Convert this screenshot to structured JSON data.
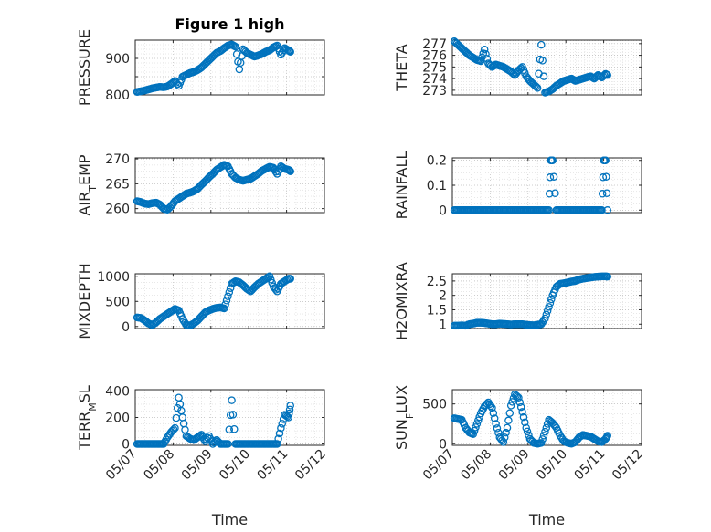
{
  "chart_data": [
    {
      "type": "scatter",
      "title": "Figure 1 high",
      "ylabel": "PRESSURE",
      "xlabel": "",
      "ylim": [
        800,
        950
      ],
      "yticks": [
        800,
        850,
        900
      ],
      "ytick_labels": [
        "800",
        "",
        "900"
      ],
      "x_range": [
        "05/07",
        "05/12"
      ],
      "grid": true,
      "marker_color": "#0072BD",
      "series": [
        {
          "x": [
            0.05,
            0.15,
            0.25,
            0.35,
            0.45,
            0.55,
            0.65,
            0.75,
            0.85,
            0.95,
            1.05,
            1.15,
            1.25,
            1.35,
            1.45,
            1.55,
            1.65,
            1.75,
            1.85,
            1.95,
            2.05,
            2.15,
            2.25,
            2.35,
            2.45,
            2.55,
            2.65,
            2.75,
            2.85,
            2.95,
            3.05,
            3.15,
            3.25,
            3.35,
            3.45,
            3.55,
            3.65,
            3.75,
            3.85,
            3.95,
            4.05,
            4.1
          ],
          "y": [
            808,
            810,
            812,
            815,
            818,
            820,
            822,
            821,
            823,
            830,
            838,
            825,
            850,
            855,
            860,
            863,
            868,
            875,
            885,
            895,
            905,
            915,
            920,
            928,
            935,
            938,
            932,
            870,
            925,
            915,
            910,
            905,
            908,
            912,
            918,
            922,
            930,
            935,
            910,
            928,
            922,
            918
          ]
        }
      ]
    },
    {
      "type": "scatter",
      "title": "",
      "ylabel": "THETA",
      "xlabel": "",
      "ylim": [
        272.6,
        277.3
      ],
      "yticks": [
        273,
        274,
        275,
        276,
        277
      ],
      "ytick_labels": [
        "273",
        "274",
        "275",
        "276",
        "277"
      ],
      "x_range": [
        "05/07",
        "05/12"
      ],
      "grid": true,
      "marker_color": "#0072BD",
      "series": [
        {
          "x": [
            0.05,
            0.15,
            0.25,
            0.35,
            0.45,
            0.55,
            0.65,
            0.75,
            0.85,
            0.95,
            1.05,
            1.15,
            1.25,
            1.35,
            1.45,
            1.55,
            1.65,
            1.75,
            1.85,
            1.95,
            2.05,
            2.15,
            2.25,
            2.35,
            2.45,
            2.55,
            2.65,
            2.75,
            2.85,
            2.95,
            3.05,
            3.15,
            3.25,
            3.35,
            3.45,
            3.55,
            3.65,
            3.75,
            3.85,
            3.95,
            4.05,
            4.1
          ],
          "y": [
            277.2,
            276.9,
            276.6,
            276.3,
            276.0,
            275.8,
            275.6,
            275.5,
            276.5,
            275.3,
            275.0,
            275.2,
            275.1,
            275.0,
            274.8,
            274.6,
            274.3,
            274.7,
            275.0,
            274.2,
            273.8,
            273.5,
            273.2,
            276.9,
            272.8,
            272.9,
            273.1,
            273.4,
            273.6,
            273.8,
            273.9,
            274.0,
            273.8,
            273.9,
            274.0,
            274.1,
            274.2,
            274.0,
            274.3,
            274.1,
            274.4,
            274.3
          ]
        }
      ]
    },
    {
      "type": "scatter",
      "title": "",
      "ylabel": "AIR_TEMP",
      "ylabel_parts": [
        "AIR",
        "T",
        "EMP"
      ],
      "xlabel": "",
      "ylim": [
        259.2,
        270.2
      ],
      "yticks": [
        260,
        265,
        270
      ],
      "ytick_labels": [
        "260",
        "265",
        "270"
      ],
      "x_range": [
        "05/07",
        "05/12"
      ],
      "grid": true,
      "marker_color": "#0072BD",
      "series": [
        {
          "x": [
            0.05,
            0.15,
            0.25,
            0.35,
            0.45,
            0.55,
            0.65,
            0.75,
            0.85,
            0.95,
            1.05,
            1.15,
            1.25,
            1.35,
            1.45,
            1.55,
            1.65,
            1.75,
            1.85,
            1.95,
            2.05,
            2.15,
            2.25,
            2.35,
            2.45,
            2.55,
            2.65,
            2.75,
            2.85,
            2.95,
            3.05,
            3.15,
            3.25,
            3.35,
            3.45,
            3.55,
            3.65,
            3.75,
            3.85,
            3.95,
            4.05,
            4.1
          ],
          "y": [
            261.5,
            261.3,
            261.0,
            260.9,
            261.1,
            261.2,
            260.8,
            260.0,
            259.8,
            260.5,
            261.5,
            262.0,
            262.5,
            263.0,
            263.2,
            263.5,
            264.0,
            264.8,
            265.5,
            266.3,
            267.0,
            267.8,
            268.3,
            268.8,
            268.5,
            267.0,
            266.2,
            265.8,
            265.6,
            265.8,
            266.0,
            266.5,
            267.0,
            267.6,
            268.0,
            268.4,
            268.2,
            267.0,
            268.5,
            268.0,
            267.8,
            267.5
          ]
        }
      ]
    },
    {
      "type": "scatter",
      "title": "",
      "ylabel": "RAINFALL",
      "xlabel": "",
      "ylim": [
        -0.01,
        0.21
      ],
      "yticks": [
        0,
        0.1,
        0.2
      ],
      "ytick_labels": [
        "0",
        "0.1",
        "0.2"
      ],
      "x_range": [
        "05/07",
        "05/12"
      ],
      "grid": true,
      "marker_color": "#0072BD",
      "series": [
        {
          "x": [
            0.05,
            0.15,
            0.25,
            0.35,
            0.45,
            0.55,
            0.65,
            0.75,
            0.85,
            0.95,
            1.05,
            1.15,
            1.25,
            1.35,
            1.45,
            1.55,
            1.65,
            1.75,
            1.85,
            1.95,
            2.05,
            2.15,
            2.25,
            2.35,
            2.45,
            2.55,
            2.6,
            2.65,
            2.75,
            2.85,
            2.95,
            3.05,
            3.15,
            3.25,
            3.35,
            3.45,
            3.55,
            3.65,
            3.75,
            3.85,
            3.95,
            4.0,
            4.05,
            4.1
          ],
          "y": [
            0,
            0,
            0,
            0,
            0,
            0,
            0,
            0,
            0,
            0,
            0,
            0,
            0,
            0,
            0,
            0,
            0,
            0,
            0,
            0,
            0,
            0,
            0,
            0,
            0,
            0,
            0.2,
            0.2,
            0,
            0,
            0,
            0,
            0,
            0,
            0,
            0,
            0,
            0,
            0,
            0,
            0,
            0.2,
            0.2,
            0
          ]
        }
      ]
    },
    {
      "type": "scatter",
      "title": "",
      "ylabel": "MIXDEPTH",
      "xlabel": "",
      "ylim": [
        -40,
        1050
      ],
      "yticks": [
        0,
        500,
        1000
      ],
      "ytick_labels": [
        "0",
        "500",
        "1000"
      ],
      "x_range": [
        "05/07",
        "05/12"
      ],
      "grid": true,
      "marker_color": "#0072BD",
      "series": [
        {
          "x": [
            0.05,
            0.15,
            0.25,
            0.35,
            0.45,
            0.55,
            0.65,
            0.75,
            0.85,
            0.95,
            1.05,
            1.15,
            1.25,
            1.35,
            1.45,
            1.55,
            1.65,
            1.75,
            1.85,
            1.95,
            2.05,
            2.15,
            2.25,
            2.35,
            2.45,
            2.55,
            2.65,
            2.75,
            2.85,
            2.95,
            3.05,
            3.15,
            3.25,
            3.35,
            3.45,
            3.55,
            3.65,
            3.75,
            3.85,
            3.95,
            4.05,
            4.1
          ],
          "y": [
            180,
            170,
            120,
            60,
            30,
            80,
            150,
            200,
            250,
            300,
            350,
            320,
            150,
            30,
            20,
            60,
            120,
            200,
            280,
            320,
            350,
            370,
            380,
            360,
            600,
            850,
            900,
            880,
            820,
            750,
            700,
            780,
            850,
            900,
            950,
            1000,
            800,
            700,
            850,
            900,
            950,
            950
          ]
        }
      ]
    },
    {
      "type": "scatter",
      "title": "",
      "ylabel": "H2OMIXRA",
      "xlabel": "",
      "ylim": [
        0.85,
        2.75
      ],
      "yticks": [
        1,
        1.5,
        2,
        2.5
      ],
      "ytick_labels": [
        "1",
        "1.5",
        "2",
        "2.5"
      ],
      "x_range": [
        "05/07",
        "05/12"
      ],
      "grid": true,
      "marker_color": "#0072BD",
      "series": [
        {
          "x": [
            0.05,
            0.15,
            0.25,
            0.35,
            0.45,
            0.55,
            0.65,
            0.75,
            0.85,
            0.95,
            1.05,
            1.15,
            1.25,
            1.35,
            1.45,
            1.55,
            1.65,
            1.75,
            1.85,
            1.95,
            2.05,
            2.15,
            2.25,
            2.35,
            2.45,
            2.55,
            2.65,
            2.75,
            2.85,
            2.95,
            3.05,
            3.15,
            3.25,
            3.35,
            3.45,
            3.55,
            3.65,
            3.75,
            3.85,
            3.95,
            4.05,
            4.1
          ],
          "y": [
            0.95,
            0.95,
            0.96,
            0.95,
            1.0,
            1.02,
            1.05,
            1.05,
            1.04,
            1.02,
            1.0,
            1.0,
            1.02,
            1.01,
            1.0,
            0.99,
            1.0,
            1.0,
            1.0,
            0.98,
            0.97,
            0.96,
            0.98,
            1.0,
            1.2,
            1.6,
            2.0,
            2.3,
            2.4,
            2.42,
            2.45,
            2.48,
            2.5,
            2.55,
            2.58,
            2.6,
            2.62,
            2.64,
            2.65,
            2.66,
            2.66,
            2.65
          ]
        }
      ]
    },
    {
      "type": "scatter",
      "title": "",
      "ylabel": "TERR_MSL",
      "ylabel_parts": [
        "TERR",
        "M",
        "SL"
      ],
      "xlabel": "Time",
      "ylim": [
        -10,
        410
      ],
      "yticks": [
        0,
        200,
        400
      ],
      "ytick_labels": [
        "0",
        "200",
        "400"
      ],
      "xtick_labels": [
        "05/07",
        "05/08",
        "05/09",
        "05/10",
        "05/11",
        "05/12"
      ],
      "x_range": [
        "05/07",
        "05/12"
      ],
      "grid": true,
      "marker_color": "#0072BD",
      "series": [
        {
          "x": [
            0.05,
            0.15,
            0.25,
            0.35,
            0.45,
            0.55,
            0.65,
            0.75,
            0.85,
            0.95,
            1.05,
            1.15,
            1.25,
            1.35,
            1.45,
            1.55,
            1.65,
            1.75,
            1.85,
            1.95,
            2.05,
            2.15,
            2.25,
            2.35,
            2.45,
            2.55,
            2.65,
            2.75,
            2.85,
            2.95,
            3.05,
            3.15,
            3.25,
            3.35,
            3.45,
            3.55,
            3.65,
            3.75,
            3.85,
            3.95,
            4.05,
            4.1
          ],
          "y": [
            0,
            0,
            0,
            0,
            0,
            0,
            0,
            0,
            50,
            90,
            120,
            350,
            200,
            60,
            40,
            30,
            50,
            70,
            20,
            60,
            0,
            30,
            0,
            0,
            0,
            330,
            0,
            0,
            0,
            0,
            0,
            0,
            0,
            0,
            0,
            0,
            0,
            0,
            120,
            220,
            200,
            290
          ]
        }
      ]
    },
    {
      "type": "scatter",
      "title": "",
      "ylabel": "SUN_FLUX",
      "ylabel_parts": [
        "SUN",
        "F",
        "LUX"
      ],
      "xlabel": "Time",
      "ylim": [
        -20,
        680
      ],
      "yticks": [
        0,
        500
      ],
      "ytick_labels": [
        "0",
        "500"
      ],
      "xtick_labels": [
        "05/07",
        "05/08",
        "05/09",
        "05/10",
        "05/11",
        "05/12"
      ],
      "x_range": [
        "05/07",
        "05/12"
      ],
      "grid": true,
      "marker_color": "#0072BD",
      "series": [
        {
          "x": [
            0.05,
            0.15,
            0.25,
            0.35,
            0.45,
            0.55,
            0.65,
            0.75,
            0.85,
            0.95,
            1.05,
            1.15,
            1.25,
            1.35,
            1.45,
            1.55,
            1.65,
            1.75,
            1.85,
            1.95,
            2.05,
            2.15,
            2.25,
            2.35,
            2.45,
            2.55,
            2.65,
            2.75,
            2.85,
            2.95,
            3.05,
            3.15,
            3.25,
            3.35,
            3.45,
            3.55,
            3.65,
            3.75,
            3.85,
            3.95,
            4.05,
            4.1
          ],
          "y": [
            320,
            310,
            300,
            200,
            140,
            120,
            250,
            380,
            470,
            520,
            450,
            250,
            80,
            20,
            200,
            480,
            620,
            580,
            400,
            200,
            60,
            10,
            0,
            10,
            150,
            300,
            260,
            200,
            100,
            30,
            10,
            0,
            20,
            80,
            110,
            100,
            90,
            60,
            30,
            20,
            60,
            100
          ]
        }
      ]
    }
  ]
}
